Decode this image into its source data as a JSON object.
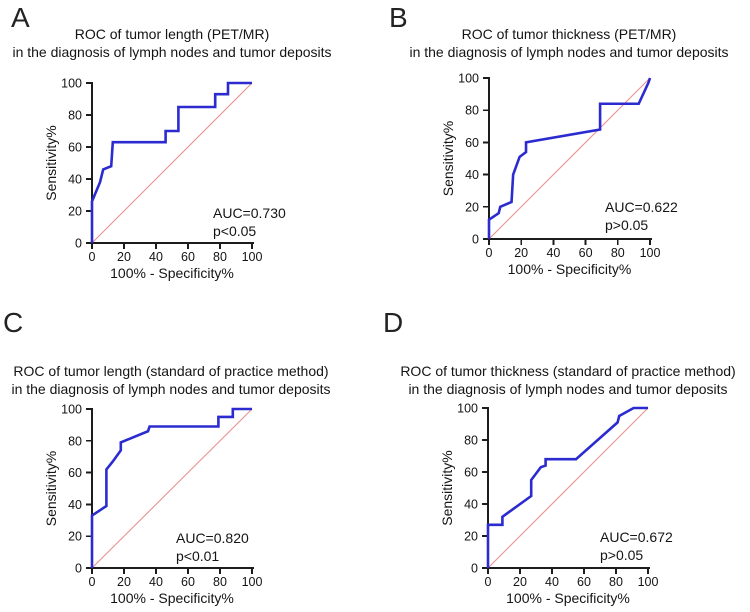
{
  "colors": {
    "roc_curve": "#2b2bd0",
    "diagonal_reference": "#ea9090",
    "axis": "#1c1c1c",
    "text": "#141414"
  },
  "chart_data": {
    "type": "line",
    "layout": "2x2 grid of ROC panels",
    "panels": [
      {
        "letter": "A",
        "title_line1": "ROC of tumor length (PET/MR)",
        "title_line2": "in the diagnosis of lymph nodes and tumor deposits",
        "xlabel": "100% - Specificity%",
        "ylabel": "Sensitivity%",
        "xlim": [
          0,
          100
        ],
        "ylim": [
          0,
          100
        ],
        "xticks": [
          0,
          20,
          40,
          60,
          80,
          100
        ],
        "yticks": [
          0,
          20,
          40,
          60,
          80,
          100
        ],
        "auc_text": "AUC=0.730",
        "p_text": "p<0.05",
        "roc_points": [
          [
            0,
            0
          ],
          [
            0,
            26
          ],
          [
            5,
            38
          ],
          [
            7,
            46
          ],
          [
            12,
            48
          ],
          [
            13,
            63
          ],
          [
            46,
            63
          ],
          [
            46,
            70
          ],
          [
            54,
            70
          ],
          [
            54,
            85
          ],
          [
            77,
            85
          ],
          [
            77,
            93
          ],
          [
            85,
            93
          ],
          [
            85,
            100
          ],
          [
            100,
            100
          ]
        ],
        "diagonal": [
          [
            0,
            0
          ],
          [
            100,
            100
          ]
        ]
      },
      {
        "letter": "B",
        "title_line1": "ROC of tumor thickness (PET/MR)",
        "title_line2": "in the diagnosis of lymph nodes and tumor deposits",
        "xlabel": "100% - Specificity%",
        "ylabel": "Sensitivity%",
        "xlim": [
          0,
          100
        ],
        "ylim": [
          0,
          100
        ],
        "xticks": [
          0,
          20,
          40,
          60,
          80,
          100
        ],
        "yticks": [
          0,
          20,
          40,
          60,
          80,
          100
        ],
        "auc_text": "AUC=0.622",
        "p_text": "p>0.05",
        "roc_points": [
          [
            0,
            0
          ],
          [
            0,
            12
          ],
          [
            6,
            16
          ],
          [
            7,
            20
          ],
          [
            14,
            23
          ],
          [
            15,
            40
          ],
          [
            19,
            51
          ],
          [
            23,
            54
          ],
          [
            23,
            60
          ],
          [
            69,
            68
          ],
          [
            69,
            84
          ],
          [
            93,
            84
          ],
          [
            99,
            97
          ],
          [
            100,
            100
          ]
        ],
        "diagonal": [
          [
            0,
            0
          ],
          [
            100,
            100
          ]
        ]
      },
      {
        "letter": "C",
        "title_line1": "ROC of tumor length (standard of practice method)",
        "title_line2": "in the diagnosis of lymph nodes and tumor deposits",
        "xlabel": "100% - Specificity%",
        "ylabel": "Sensitivity%",
        "xlim": [
          0,
          100
        ],
        "ylim": [
          0,
          100
        ],
        "xticks": [
          0,
          20,
          40,
          60,
          80,
          100
        ],
        "yticks": [
          0,
          20,
          40,
          60,
          80,
          100
        ],
        "auc_text": "AUC=0.820",
        "p_text": "p<0.01",
        "roc_points": [
          [
            0,
            0
          ],
          [
            0,
            33
          ],
          [
            6,
            37
          ],
          [
            9,
            39
          ],
          [
            9,
            62
          ],
          [
            13,
            67
          ],
          [
            18,
            74
          ],
          [
            18,
            79
          ],
          [
            35,
            86
          ],
          [
            36,
            89
          ],
          [
            79,
            89
          ],
          [
            79,
            95
          ],
          [
            88,
            95
          ],
          [
            88,
            100
          ],
          [
            100,
            100
          ]
        ],
        "diagonal": [
          [
            0,
            0
          ],
          [
            100,
            100
          ]
        ]
      },
      {
        "letter": "D",
        "title_line1": "ROC of tumor thickness (standard of practice method)",
        "title_line2": "in the diagnosis of lymph nodes and tumor deposits",
        "xlabel": "100% - Specificity%",
        "ylabel": "Sensitivity%",
        "xlim": [
          0,
          100
        ],
        "ylim": [
          0,
          100
        ],
        "xticks": [
          0,
          20,
          40,
          60,
          80,
          100
        ],
        "yticks": [
          0,
          20,
          40,
          60,
          80,
          100
        ],
        "auc_text": "AUC=0.672",
        "p_text": "p>0.05",
        "roc_points": [
          [
            0,
            0
          ],
          [
            0,
            27
          ],
          [
            9,
            27
          ],
          [
            9,
            32
          ],
          [
            27,
            45
          ],
          [
            27,
            55
          ],
          [
            33,
            63
          ],
          [
            36,
            64
          ],
          [
            36,
            68
          ],
          [
            55,
            68
          ],
          [
            81,
            91
          ],
          [
            82,
            95
          ],
          [
            91,
            100
          ],
          [
            100,
            100
          ]
        ],
        "diagonal": [
          [
            0,
            0
          ],
          [
            100,
            100
          ]
        ]
      }
    ]
  }
}
